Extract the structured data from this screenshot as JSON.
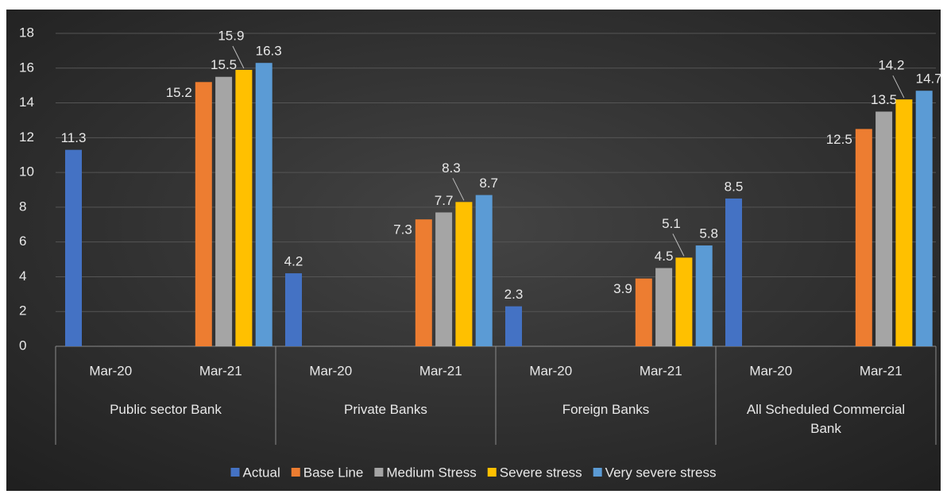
{
  "chart_data": {
    "type": "bar",
    "categories": [
      "Mar-20",
      "Mar-21",
      "Mar-20",
      "Mar-21",
      "Mar-20",
      "Mar-21",
      "Mar-20",
      "Mar-21"
    ],
    "groups": [
      "Public sector Bank",
      "Private Banks",
      "Foreign Banks",
      "All Scheduled Commercial Bank"
    ],
    "series": [
      {
        "name": "Actual",
        "color": "#4472c4",
        "values": [
          11.3,
          null,
          4.2,
          null,
          2.3,
          null,
          8.5,
          null
        ]
      },
      {
        "name": "Base Line",
        "color": "#ed7d31",
        "values": [
          null,
          15.2,
          null,
          7.3,
          null,
          3.9,
          null,
          12.5
        ]
      },
      {
        "name": "Medium Stress",
        "color": "#a5a5a5",
        "values": [
          null,
          15.5,
          null,
          7.7,
          null,
          4.5,
          null,
          13.5
        ]
      },
      {
        "name": "Severe stress",
        "color": "#ffc000",
        "values": [
          null,
          15.9,
          null,
          8.3,
          null,
          5.1,
          null,
          14.2
        ]
      },
      {
        "name": "Very severe stress",
        "color": "#5b9bd5",
        "values": [
          null,
          16.3,
          null,
          8.7,
          null,
          5.8,
          null,
          14.7
        ]
      }
    ],
    "ylim": [
      0,
      18
    ],
    "yticks": [
      0,
      2,
      4,
      6,
      8,
      10,
      12,
      14,
      16,
      18
    ],
    "grid": true,
    "legend": "bottom"
  }
}
